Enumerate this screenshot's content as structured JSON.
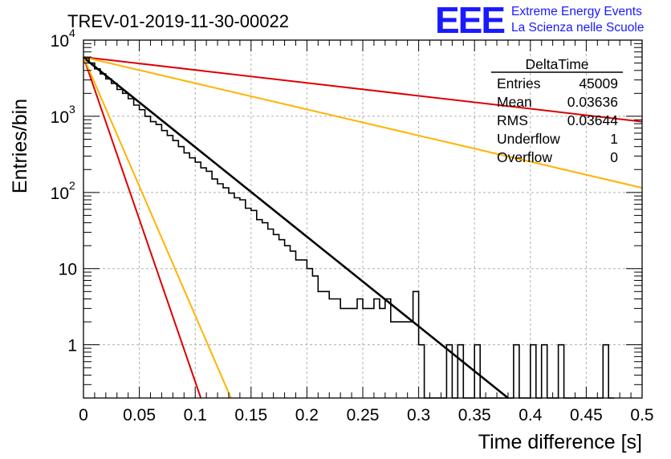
{
  "chart_data": {
    "type": "line",
    "title": "TREV-01-2019-11-30-00022",
    "xlabel": "Time difference [s]",
    "ylabel": "Entries/bin",
    "xlim": [
      0,
      0.5
    ],
    "ylim": [
      0.2,
      10000
    ],
    "yscale": "log",
    "grid": true,
    "x_ticks": [
      {
        "v": 0,
        "label": "0"
      },
      {
        "v": 0.05,
        "label": "0.05"
      },
      {
        "v": 0.1,
        "label": "0.1"
      },
      {
        "v": 0.15,
        "label": "0.15"
      },
      {
        "v": 0.2,
        "label": "0.2"
      },
      {
        "v": 0.25,
        "label": "0.25"
      },
      {
        "v": 0.3,
        "label": "0.3"
      },
      {
        "v": 0.35,
        "label": "0.35"
      },
      {
        "v": 0.4,
        "label": "0.4"
      },
      {
        "v": 0.45,
        "label": "0.45"
      },
      {
        "v": 0.5,
        "label": "0.5"
      }
    ],
    "y_ticks": [
      {
        "v": 1,
        "base": "1",
        "exp": ""
      },
      {
        "v": 10,
        "base": "10",
        "exp": ""
      },
      {
        "v": 100,
        "base": "10",
        "exp": "2"
      },
      {
        "v": 1000,
        "base": "10",
        "exp": "3"
      },
      {
        "v": 10000,
        "base": "10",
        "exp": "4"
      }
    ],
    "histogram": {
      "color": "#000000",
      "bin_width": 0.005,
      "bins": [
        [
          0.0,
          5800
        ],
        [
          0.005,
          5000
        ],
        [
          0.01,
          4200
        ],
        [
          0.015,
          3600
        ],
        [
          0.02,
          3100
        ],
        [
          0.025,
          2700
        ],
        [
          0.03,
          2250
        ],
        [
          0.035,
          2000
        ],
        [
          0.04,
          1700
        ],
        [
          0.045,
          1400
        ],
        [
          0.05,
          1220
        ],
        [
          0.055,
          1000
        ],
        [
          0.06,
          850
        ],
        [
          0.065,
          780
        ],
        [
          0.07,
          650
        ],
        [
          0.075,
          560
        ],
        [
          0.08,
          480
        ],
        [
          0.085,
          400
        ],
        [
          0.09,
          330
        ],
        [
          0.095,
          285
        ],
        [
          0.1,
          250
        ],
        [
          0.105,
          210
        ],
        [
          0.11,
          190
        ],
        [
          0.115,
          150
        ],
        [
          0.12,
          130
        ],
        [
          0.125,
          115
        ],
        [
          0.13,
          98
        ],
        [
          0.135,
          85
        ],
        [
          0.14,
          80
        ],
        [
          0.145,
          62
        ],
        [
          0.15,
          58
        ],
        [
          0.155,
          44
        ],
        [
          0.16,
          40
        ],
        [
          0.165,
          33
        ],
        [
          0.17,
          28
        ],
        [
          0.175,
          24
        ],
        [
          0.18,
          20
        ],
        [
          0.185,
          17
        ],
        [
          0.19,
          13
        ],
        [
          0.195,
          13
        ],
        [
          0.2,
          10
        ],
        [
          0.205,
          8
        ],
        [
          0.21,
          5
        ],
        [
          0.215,
          5
        ],
        [
          0.22,
          4
        ],
        [
          0.225,
          4
        ],
        [
          0.23,
          3
        ],
        [
          0.235,
          3
        ],
        [
          0.24,
          3
        ],
        [
          0.245,
          4
        ],
        [
          0.25,
          3
        ],
        [
          0.255,
          3
        ],
        [
          0.26,
          4
        ],
        [
          0.265,
          3
        ],
        [
          0.27,
          4
        ],
        [
          0.275,
          2
        ],
        [
          0.28,
          2
        ],
        [
          0.285,
          2
        ],
        [
          0.29,
          2
        ],
        [
          0.295,
          5
        ],
        [
          0.3,
          1
        ],
        [
          0.305,
          0
        ],
        [
          0.31,
          0
        ],
        [
          0.315,
          0
        ],
        [
          0.32,
          0
        ],
        [
          0.325,
          1
        ],
        [
          0.33,
          0
        ],
        [
          0.335,
          1
        ],
        [
          0.34,
          0
        ],
        [
          0.345,
          0
        ],
        [
          0.35,
          1
        ],
        [
          0.355,
          0
        ],
        [
          0.36,
          0
        ],
        [
          0.365,
          0
        ],
        [
          0.37,
          0
        ],
        [
          0.375,
          0
        ],
        [
          0.38,
          0
        ],
        [
          0.385,
          1
        ],
        [
          0.39,
          0
        ],
        [
          0.395,
          0
        ],
        [
          0.4,
          1
        ],
        [
          0.405,
          0
        ],
        [
          0.41,
          1
        ],
        [
          0.415,
          0
        ],
        [
          0.42,
          0
        ],
        [
          0.425,
          1
        ],
        [
          0.43,
          0
        ],
        [
          0.435,
          0
        ],
        [
          0.44,
          0
        ],
        [
          0.445,
          0
        ],
        [
          0.45,
          0
        ],
        [
          0.455,
          0
        ],
        [
          0.46,
          0
        ],
        [
          0.465,
          1
        ],
        [
          0.47,
          0
        ]
      ]
    },
    "series": [
      {
        "color": "#000000",
        "points": [
          [
            0.0,
            5900
          ],
          [
            0.38,
            0.2
          ]
        ]
      },
      {
        "color": "#dd0000",
        "points": [
          [
            0.0,
            6000
          ],
          [
            0.5,
            850
          ]
        ]
      },
      {
        "color": "#ffb300",
        "points": [
          [
            0.0,
            6000
          ],
          [
            0.5,
            115
          ]
        ]
      },
      {
        "color": "#dd0000",
        "points": [
          [
            0.0,
            6000
          ],
          [
            0.105,
            0.2
          ]
        ]
      },
      {
        "color": "#ffb300",
        "points": [
          [
            0.0,
            6000
          ],
          [
            0.132,
            0.2
          ]
        ]
      }
    ],
    "stats_box": {
      "title": "DeltaTime",
      "rows": [
        {
          "label": "Entries",
          "value": "45009"
        },
        {
          "label": "Mean",
          "value": "0.03636"
        },
        {
          "label": "RMS",
          "value": "0.03644"
        },
        {
          "label": "Underflow",
          "value": "1"
        },
        {
          "label": "Overflow",
          "value": "0"
        }
      ]
    }
  },
  "logo": {
    "mark": "EEE",
    "line1": "Extreme Energy Events",
    "line2": "La Scienza nelle Scuole"
  }
}
